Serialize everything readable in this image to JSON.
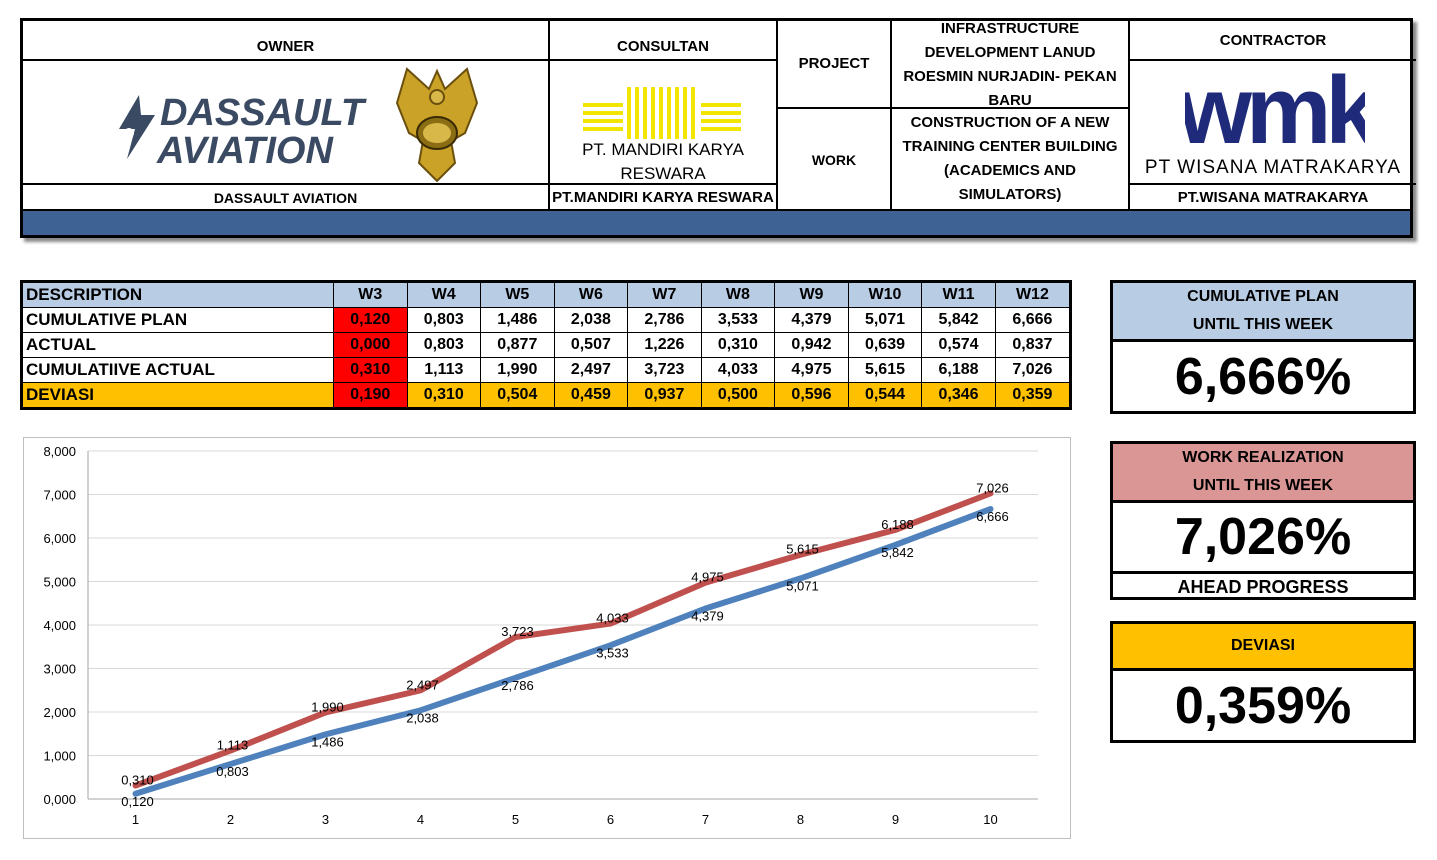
{
  "header": {
    "owner_label": "OWNER",
    "owner_logo_text_1": "DASSAULT",
    "owner_logo_text_2": "AVIATION",
    "owner_name": "DASSAULT AVIATION",
    "consultant_label": "CONSULTAN",
    "consultant_logo_text": "PT. MANDIRI KARYA RESWARA",
    "consultant_name": "PT.MANDIRI KARYA RESWARA",
    "project_label": "PROJECT",
    "project_value": "INFRASTRUCTURE DEVELOPMENT LANUD ROESMIN NURJADIN- PEKAN BARU",
    "work_label": "WORK",
    "work_value": "CONSTRUCTION OF A NEW TRAINING CENTER BUILDING (ACADEMICS AND SIMULATORS)",
    "contractor_label": "CONTRACTOR",
    "contractor_logo_text": "wmk",
    "contractor_logo_sub": "PT WISANA MATRAKARYA",
    "contractor_name": "PT.WISANA MATRAKARYA",
    "colors": {
      "band": "#3d6293",
      "dassault": "#3a4a63",
      "mandiri": "#f2e600",
      "wmk": "#1f2a7a"
    }
  },
  "table": {
    "description_label": "DESCRIPTION",
    "weeks": [
      "W3",
      "W4",
      "W5",
      "W6",
      "W7",
      "W8",
      "W9",
      "W10",
      "W11",
      "W12"
    ],
    "rows": [
      {
        "label": "CUMULATIVE PLAN",
        "values": [
          "0,120",
          "0,803",
          "1,486",
          "2,038",
          "2,786",
          "3,533",
          "4,379",
          "5,071",
          "5,842",
          "6,666"
        ]
      },
      {
        "label": "ACTUAL",
        "values": [
          "0,000",
          "0,803",
          "0,877",
          "0,507",
          "1,226",
          "0,310",
          "0,942",
          "0,639",
          "0,574",
          "0,837"
        ]
      },
      {
        "label": "CUMULATIIVE ACTUAL",
        "values": [
          "0,310",
          "1,113",
          "1,990",
          "2,497",
          "3,723",
          "4,033",
          "4,975",
          "5,615",
          "6,188",
          "7,026"
        ]
      },
      {
        "label": "DEVIASI",
        "values": [
          "0,190",
          "0,310",
          "0,504",
          "0,459",
          "0,937",
          "0,500",
          "0,596",
          "0,544",
          "0,346",
          "0,359"
        ]
      }
    ],
    "colors": {
      "header": "#b8cce4",
      "current_week": "#ff0000",
      "deviasi": "#ffc000"
    }
  },
  "panels": {
    "plan": {
      "title_1": "CUMULATIVE PLAN",
      "title_2": "UNTIL THIS WEEK",
      "value": "6,666%",
      "color": "#b8cce4"
    },
    "realization": {
      "title_1": "WORK REALIZATION",
      "title_2": "UNTIL THIS WEEK",
      "value": "7,026%",
      "note": "AHEAD PROGRESS",
      "color": "#da9694"
    },
    "deviasi": {
      "title": "DEVIASI",
      "value": "0,359%",
      "color": "#ffc000"
    }
  },
  "chart_data": {
    "type": "line",
    "x": [
      1,
      2,
      3,
      4,
      5,
      6,
      7,
      8,
      9,
      10
    ],
    "ylim": [
      0,
      8
    ],
    "y_ticks": [
      "0,000",
      "1,000",
      "2,000",
      "3,000",
      "4,000",
      "5,000",
      "6,000",
      "7,000",
      "8,000"
    ],
    "grid": true,
    "legend": "none",
    "series": [
      {
        "color": "#4f81bd",
        "values": [
          0.12,
          0.803,
          1.486,
          2.038,
          2.786,
          3.533,
          4.379,
          5.071,
          5.842,
          6.666
        ],
        "labels": [
          "0,120",
          "0,803",
          "1,486",
          "2,038",
          "2,786",
          "3,533",
          "4,379",
          "5,071",
          "5,842",
          "6,666"
        ]
      },
      {
        "color": "#c0504d",
        "values": [
          0.31,
          1.113,
          1.99,
          2.497,
          3.723,
          4.033,
          4.975,
          5.615,
          6.188,
          7.026
        ],
        "labels": [
          "0,310",
          "1,113",
          "1,990",
          "2,497",
          "3,723",
          "4,033",
          "4,975",
          "5,615",
          "6,188",
          "7,026"
        ]
      }
    ]
  }
}
